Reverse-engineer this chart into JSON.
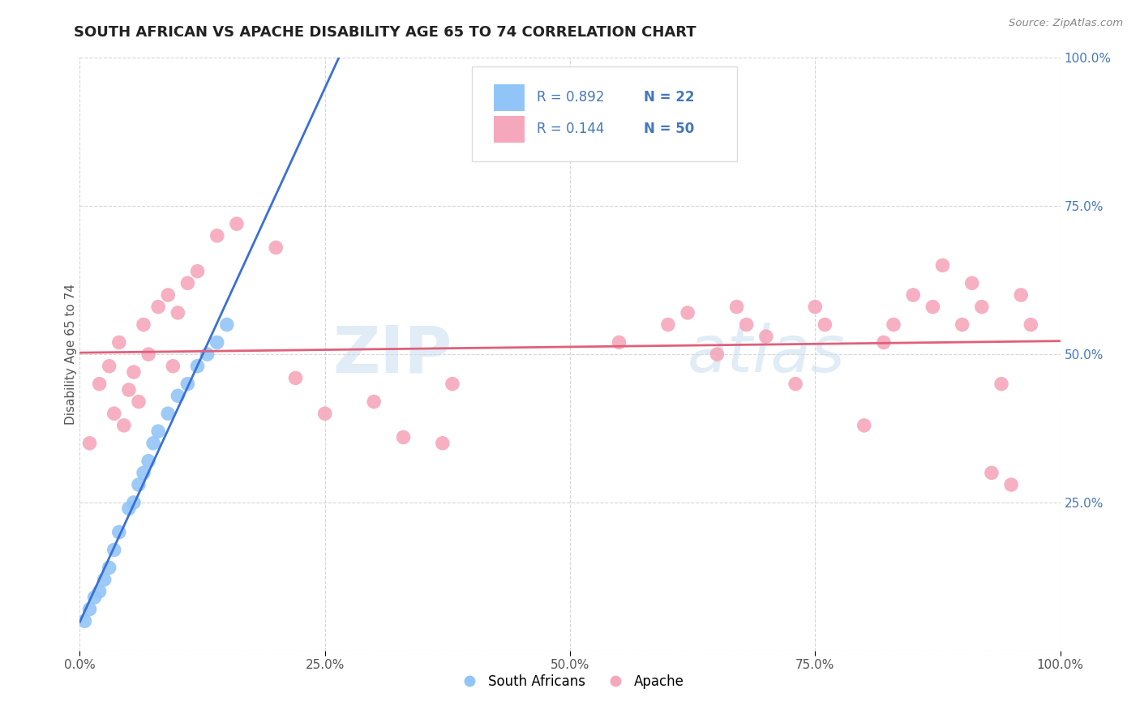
{
  "title": "SOUTH AFRICAN VS APACHE DISABILITY AGE 65 TO 74 CORRELATION CHART",
  "source_text": "Source: ZipAtlas.com",
  "ylabel": "Disability Age 65 to 74",
  "watermark_line1": "ZIP",
  "watermark_line2": "atlas",
  "south_african_color": "#92c5f7",
  "apache_color": "#f5a8bc",
  "trendline_sa_color": "#3a6fd8",
  "trendline_apache_color": "#e0607a",
  "legend_R_sa": "R = 0.892",
  "legend_N_sa": "N = 22",
  "legend_R_ap": "R = 0.144",
  "legend_N_ap": "N = 50",
  "legend_label_sa": "South Africans",
  "legend_label_ap": "Apache",
  "tick_color": "#4477bb",
  "grid_color": "#cccccc",
  "title_color": "#222222",
  "source_color": "#888888",
  "sa_x": [
    0.5,
    1.0,
    1.5,
    2.0,
    2.5,
    3.0,
    3.5,
    4.0,
    5.0,
    5.5,
    6.0,
    6.5,
    7.0,
    7.5,
    8.0,
    9.0,
    10.0,
    11.0,
    12.0,
    13.0,
    14.0,
    15.0
  ],
  "sa_y": [
    5.0,
    7.0,
    9.0,
    10.0,
    12.0,
    14.0,
    17.0,
    20.0,
    24.0,
    25.0,
    28.0,
    30.0,
    32.0,
    35.0,
    37.0,
    40.0,
    43.0,
    45.0,
    48.0,
    50.0,
    52.0,
    55.0
  ],
  "ap_x": [
    1.0,
    2.0,
    3.0,
    3.5,
    4.0,
    4.5,
    5.0,
    5.5,
    6.0,
    6.5,
    7.0,
    8.0,
    9.0,
    9.5,
    10.0,
    11.0,
    12.0,
    14.0,
    16.0,
    20.0,
    22.0,
    25.0,
    30.0,
    33.0,
    37.0,
    38.0,
    55.0,
    60.0,
    62.0,
    65.0,
    67.0,
    68.0,
    70.0,
    73.0,
    75.0,
    76.0,
    80.0,
    82.0,
    83.0,
    85.0,
    87.0,
    88.0,
    90.0,
    91.0,
    92.0,
    93.0,
    94.0,
    95.0,
    96.0,
    97.0
  ],
  "ap_y": [
    35.0,
    45.0,
    48.0,
    40.0,
    52.0,
    38.0,
    44.0,
    47.0,
    42.0,
    55.0,
    50.0,
    58.0,
    60.0,
    48.0,
    57.0,
    62.0,
    64.0,
    70.0,
    72.0,
    68.0,
    46.0,
    40.0,
    42.0,
    36.0,
    35.0,
    45.0,
    52.0,
    55.0,
    57.0,
    50.0,
    58.0,
    55.0,
    53.0,
    45.0,
    58.0,
    55.0,
    38.0,
    52.0,
    55.0,
    60.0,
    58.0,
    65.0,
    55.0,
    62.0,
    58.0,
    30.0,
    45.0,
    28.0,
    60.0,
    55.0
  ],
  "xlim": [
    0,
    100
  ],
  "ylim": [
    0,
    100
  ],
  "background_color": "#ffffff"
}
